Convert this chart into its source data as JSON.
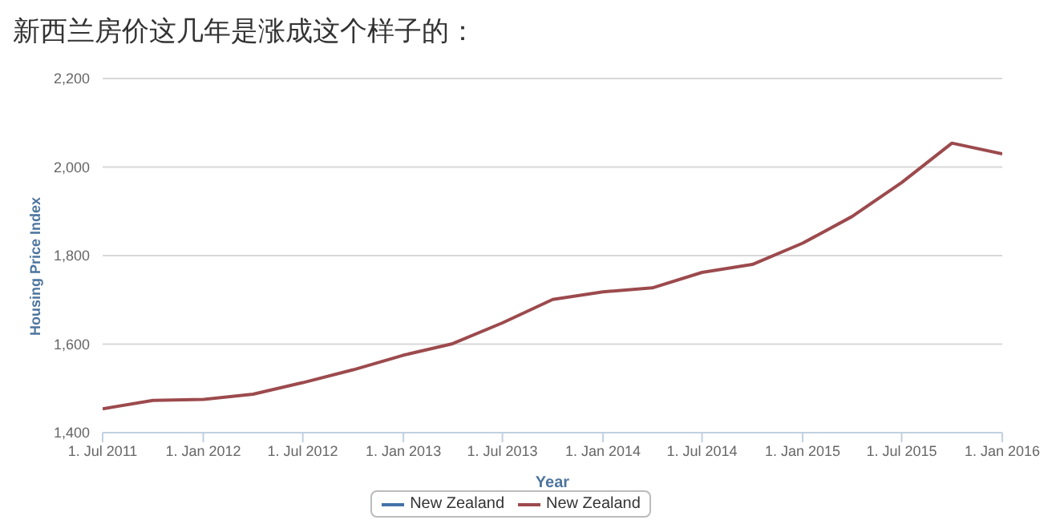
{
  "chart_data": {
    "type": "line",
    "title": "新西兰房价这几年是涨成这个样子的：",
    "xlabel": "Year",
    "ylabel": "Housing Price Index",
    "x": [
      "2011-07",
      "2011-10",
      "2012-01",
      "2012-04",
      "2012-07",
      "2012-10",
      "2013-01",
      "2013-04",
      "2013-07",
      "2013-10",
      "2014-01",
      "2014-04",
      "2014-07",
      "2014-10",
      "2015-01",
      "2015-04",
      "2015-07",
      "2015-10",
      "2016-01"
    ],
    "series": [
      {
        "name": "New Zealand",
        "color": "#4572a7",
        "values": [
          null,
          null,
          null,
          null,
          null,
          null,
          null,
          null,
          null,
          null,
          null,
          null,
          null,
          null,
          null,
          null,
          null,
          null,
          null
        ]
      },
      {
        "name": "New Zealand",
        "color": "#9c4a4d",
        "values": [
          1454,
          1473,
          1475,
          1487,
          1513,
          1542,
          1575,
          1601,
          1648,
          1701,
          1718,
          1727,
          1762,
          1780,
          1828,
          1888,
          1965,
          2054,
          2030
        ]
      }
    ],
    "xlim": [
      "2011-07",
      "2016-01"
    ],
    "xticks": [
      {
        "value": "2011-07",
        "label": "1. Jul 2011"
      },
      {
        "value": "2012-01",
        "label": "1. Jan 2012"
      },
      {
        "value": "2012-07",
        "label": "1. Jul 2012"
      },
      {
        "value": "2013-01",
        "label": "1. Jan 2013"
      },
      {
        "value": "2013-07",
        "label": "1. Jul 2013"
      },
      {
        "value": "2014-01",
        "label": "1. Jan 2014"
      },
      {
        "value": "2014-07",
        "label": "1. Jul 2014"
      },
      {
        "value": "2015-01",
        "label": "1. Jan 2015"
      },
      {
        "value": "2015-07",
        "label": "1. Jul 2015"
      },
      {
        "value": "2016-01",
        "label": "1. Jan 2016"
      }
    ],
    "ylim": [
      1400,
      2200
    ],
    "yticks": [
      {
        "value": 1400,
        "label": "1,400"
      },
      {
        "value": 1600,
        "label": "1,600"
      },
      {
        "value": 1800,
        "label": "1,800"
      },
      {
        "value": 2000,
        "label": "2,000"
      },
      {
        "value": 2200,
        "label": "2,200"
      }
    ],
    "grid": "y",
    "legend": "bottom",
    "marker": "none",
    "line_style": "solid"
  }
}
